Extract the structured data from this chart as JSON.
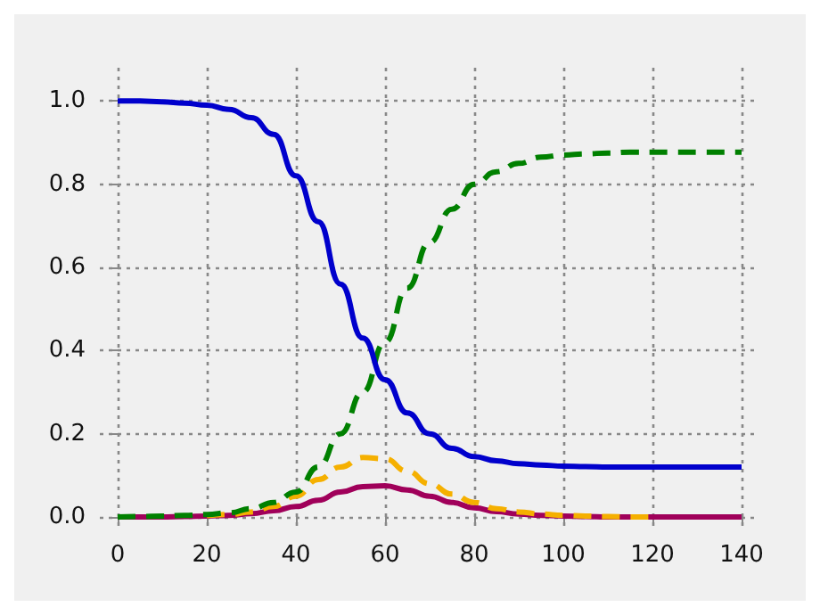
{
  "chart_data": {
    "type": "line",
    "x": [
      0,
      5,
      10,
      15,
      20,
      25,
      30,
      35,
      40,
      45,
      50,
      55,
      60,
      65,
      70,
      75,
      80,
      85,
      90,
      95,
      100,
      105,
      110,
      115,
      120,
      125,
      130,
      135,
      140
    ],
    "xlim": [
      -4,
      144
    ],
    "xticks": [
      0,
      20,
      40,
      60,
      80,
      100,
      120,
      140
    ],
    "ylim": [
      -0.03,
      1.08
    ],
    "yticks": [
      {
        "value": 0,
        "label": "0.0"
      },
      {
        "value": 0.2,
        "label": "0.2"
      },
      {
        "value": 0.4,
        "label": "0.4"
      },
      {
        "value": 0.6,
        "label": "0.6"
      },
      {
        "value": 0.8,
        "label": "0.8"
      },
      {
        "value": 1,
        "label": "1.0"
      }
    ],
    "grid": true,
    "marker": "none",
    "series": [
      {
        "color": "#0000cc",
        "line_style": "solid",
        "values": [
          1,
          1,
          0.998,
          0.995,
          0.99,
          0.98,
          0.96,
          0.92,
          0.82,
          0.71,
          0.56,
          0.43,
          0.33,
          0.25,
          0.2,
          0.165,
          0.145,
          0.135,
          0.128,
          0.125,
          0.122,
          0.121,
          0.12,
          0.12,
          0.12,
          0.12,
          0.12,
          0.12,
          0.12
        ]
      },
      {
        "color": "#008000",
        "line_style": "dashed",
        "values": [
          0,
          0.001,
          0.002,
          0.004,
          0.006,
          0.01,
          0.02,
          0.035,
          0.06,
          0.12,
          0.2,
          0.3,
          0.42,
          0.55,
          0.66,
          0.74,
          0.8,
          0.83,
          0.85,
          0.865,
          0.87,
          0.873,
          0.875,
          0.877,
          0.877,
          0.877,
          0.877,
          0.877,
          0.877
        ]
      },
      {
        "color": "#f5b000",
        "line_style": "dashed",
        "values": [
          null,
          null,
          null,
          null,
          0.003,
          0.006,
          0.012,
          0.025,
          0.05,
          0.09,
          0.12,
          0.143,
          0.14,
          0.11,
          0.08,
          0.055,
          0.035,
          0.02,
          0.012,
          0.007,
          0.004,
          0.002,
          0.001,
          0,
          0,
          null,
          null,
          null,
          null
        ]
      },
      {
        "color": "#a0005a",
        "line_style": "solid",
        "values": [
          0,
          0,
          0,
          0.001,
          0.002,
          0.004,
          0.008,
          0.015,
          0.025,
          0.04,
          0.06,
          0.073,
          0.075,
          0.065,
          0.05,
          0.035,
          0.022,
          0.013,
          0.007,
          0.004,
          0.002,
          0.001,
          0,
          0,
          0,
          0,
          0,
          0,
          0
        ]
      }
    ]
  }
}
